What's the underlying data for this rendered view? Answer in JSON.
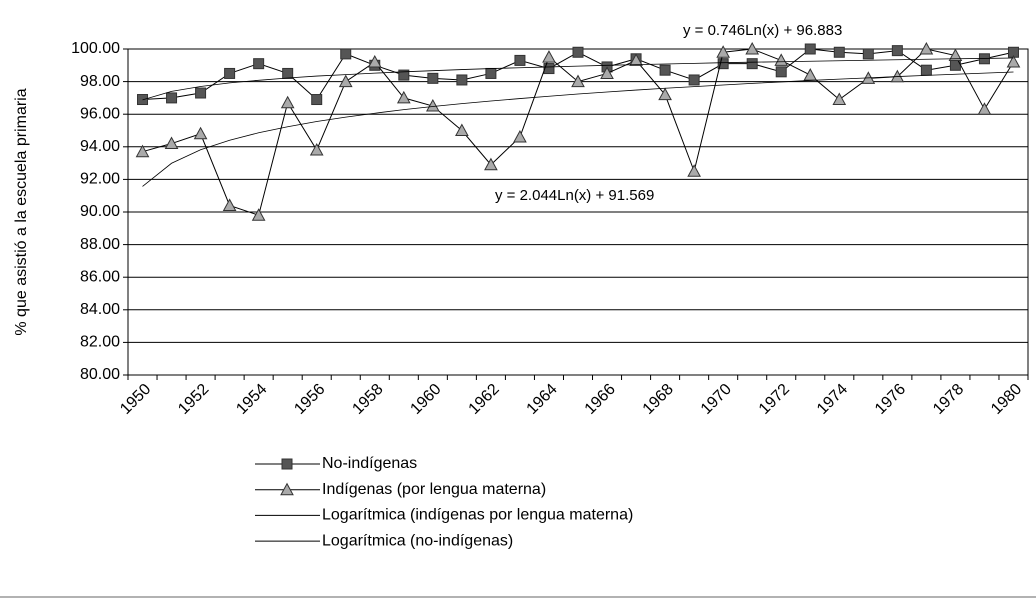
{
  "chart_data": {
    "type": "line",
    "y_label": "% que asistió a la escuela primaria",
    "annotations": [
      "y = 0.746Ln(x) + 96.883",
      "y = 2.044Ln(x) + 91.569"
    ],
    "categories": [
      "1950",
      null,
      "1952",
      null,
      "1954",
      null,
      "1956",
      null,
      "1958",
      null,
      "1960",
      null,
      "1962",
      null,
      "1964",
      null,
      "1966",
      null,
      "1968",
      null,
      "1970",
      null,
      "1972",
      null,
      "1974",
      null,
      "1976",
      null,
      "1978",
      null,
      "1980"
    ],
    "series": [
      {
        "name": "No-indígenas",
        "color": "#555555",
        "marker": "square",
        "values": [
          96.9,
          97.0,
          97.3,
          98.5,
          99.1,
          98.5,
          96.9,
          99.7,
          99.0,
          98.4,
          98.2,
          98.1,
          98.5,
          99.3,
          98.8,
          99.8,
          98.9,
          99.4,
          98.7,
          98.1,
          99.1,
          99.1,
          98.6,
          100.0,
          99.8,
          99.7,
          99.9,
          98.7,
          99.0,
          99.4,
          99.8
        ]
      },
      {
        "name": "Indígenas (por lengua materna)",
        "color": "#aaaaaa",
        "marker": "triangle",
        "values": [
          93.7,
          94.2,
          94.8,
          90.4,
          89.8,
          96.7,
          93.8,
          98.0,
          99.2,
          97.0,
          96.5,
          95.0,
          92.9,
          94.6,
          99.5,
          98.0,
          98.5,
          99.3,
          97.2,
          92.5,
          99.8,
          100.0,
          99.3,
          98.4,
          96.9,
          98.2,
          98.3,
          100.0,
          99.6,
          96.3,
          99.2
        ]
      },
      {
        "name": "Logarítmica (indígenas por lengua materna)",
        "color": "#000000",
        "marker": "none",
        "values": [
          91.57,
          92.99,
          93.82,
          94.4,
          94.86,
          95.23,
          95.55,
          95.82,
          96.06,
          96.28,
          96.47,
          96.65,
          96.81,
          96.96,
          97.1,
          97.24,
          97.36,
          97.48,
          97.59,
          97.69,
          97.79,
          97.89,
          97.98,
          98.07,
          98.15,
          98.23,
          98.31,
          98.38,
          98.45,
          98.52,
          98.59
        ]
      },
      {
        "name": "Logarítmica (no-indígenas)",
        "color": "#000000",
        "marker": "none",
        "values": [
          96.88,
          97.4,
          97.7,
          97.92,
          98.08,
          98.22,
          98.34,
          98.43,
          98.52,
          98.6,
          98.67,
          98.74,
          98.8,
          98.85,
          98.9,
          98.95,
          99.0,
          99.04,
          99.08,
          99.12,
          99.16,
          99.19,
          99.22,
          99.25,
          99.28,
          99.31,
          99.34,
          99.37,
          99.4,
          99.42,
          99.45
        ]
      }
    ],
    "ylim": [
      80,
      100
    ],
    "yticks": [
      {
        "value": 80,
        "label": "80.00"
      },
      {
        "value": 82,
        "label": "82.00"
      },
      {
        "value": 84,
        "label": "84.00"
      },
      {
        "value": 86,
        "label": "86.00"
      },
      {
        "value": 88,
        "label": "88.00"
      },
      {
        "value": 90,
        "label": "90.00"
      },
      {
        "value": 92,
        "label": "92.00"
      },
      {
        "value": 94,
        "label": "94.00"
      },
      {
        "value": 96,
        "label": "96.00"
      },
      {
        "value": 98,
        "label": "98.00"
      },
      {
        "value": 100,
        "label": "100.00"
      }
    ],
    "grid": true,
    "legend": "bottom"
  }
}
